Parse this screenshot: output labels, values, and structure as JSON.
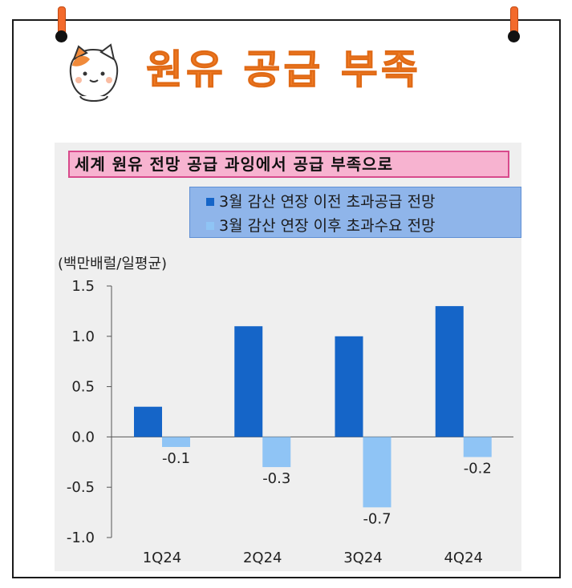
{
  "header": {
    "title": "원유 공급 부족"
  },
  "chart_data": {
    "type": "bar",
    "title": "세계 원유 전망 공급 과잉에서 공급 부족으로",
    "ylabel": "(백만배럴/일평균)",
    "categories": [
      "1Q24",
      "2Q24",
      "3Q24",
      "4Q24"
    ],
    "series": [
      {
        "name": "3월 감산 연장 이전 초과공급 전망",
        "color": "#1565c8",
        "values": [
          0.3,
          1.1,
          1.0,
          1.3
        ]
      },
      {
        "name": "3월 감산 연장 이후 초과수요 전망",
        "color": "#8fc4f5",
        "values": [
          -0.1,
          -0.3,
          -0.7,
          -0.2
        ]
      }
    ],
    "data_labels": [
      "-0.1",
      "-0.3",
      "-0.7",
      "-0.2"
    ],
    "ylim": [
      -1.0,
      1.5
    ],
    "yticks": [
      "1.5",
      "1.0",
      "0.5",
      "0.0",
      "-0.5",
      "-1.0"
    ],
    "grid": false,
    "legend_position": "top-right"
  }
}
